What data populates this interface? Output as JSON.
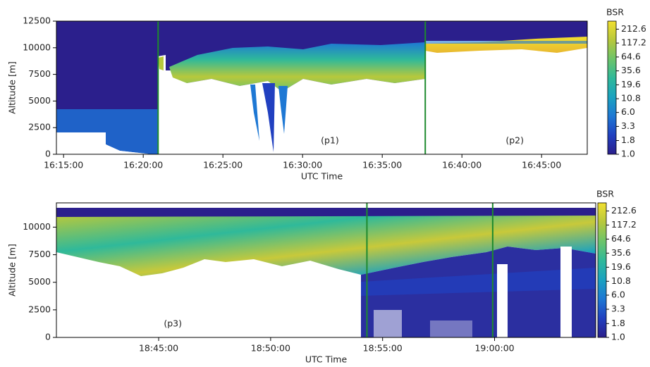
{
  "chart_data": [
    {
      "type": "heatmap",
      "x_label": "UTC Time",
      "y_label": "Altitude [m]",
      "xlim": [
        "16:14:33",
        "16:47:52"
      ],
      "xticks": [
        "16:15:00",
        "16:20:00",
        "16:25:00",
        "16:30:00",
        "16:35:00",
        "16:40:00",
        "16:45:00"
      ],
      "ylim": [
        0,
        12500
      ],
      "yticks": [
        0,
        2500,
        5000,
        7500,
        10000,
        12500
      ],
      "vlines": {
        "color": "#1e8a2e",
        "x": [
          "16:20:56",
          "16:37:42"
        ]
      },
      "annotations": [
        {
          "text": "(p1)",
          "x": "16:31:43",
          "y": 1257
        },
        {
          "text": "(p2)",
          "x": "16:43:19",
          "y": 1257
        }
      ],
      "colorbar": {
        "label": "BSR",
        "log": true,
        "clim": [
          1,
          300
        ],
        "colors": [
          "#2b1f8c",
          "#2140c0",
          "#1e78d4",
          "#1aa2c0",
          "#2fb99a",
          "#6cc46a",
          "#b7c83c",
          "#f2e030"
        ],
        "ticks": [
          {
            "value": 1,
            "label": "1.0"
          },
          1.8,
          3.3,
          {
            "value": 6,
            "label": "6.0"
          },
          10.8,
          19.6,
          35.6,
          64.6,
          117.2,
          212.6
        ]
      }
    },
    {
      "type": "heatmap",
      "x_label": "UTC Time",
      "y_label": "Altitude [m]",
      "xlim": [
        "18:40:26",
        "19:04:31"
      ],
      "xticks": [
        "18:45:00",
        "18:50:00",
        "18:55:00",
        "19:00:00"
      ],
      "ylim": [
        0,
        12200
      ],
      "yticks": [
        0,
        2500,
        5000,
        7500,
        10000
      ],
      "vlines": {
        "color": "#1e8a2e",
        "x": [
          "18:54:18",
          "18:59:55"
        ]
      },
      "annotations": [
        {
          "text": "(p3)",
          "x": "18:45:38",
          "y": 1210
        }
      ],
      "colorbar": {
        "label": "BSR",
        "log": true,
        "clim": [
          1,
          300
        ],
        "colors": [
          "#2b1f8c",
          "#2140c0",
          "#1e78d4",
          "#1aa2c0",
          "#2fb99a",
          "#6cc46a",
          "#b7c83c",
          "#f2e030"
        ],
        "ticks": [
          {
            "value": 1,
            "label": "1.0"
          },
          1.8,
          3.3,
          {
            "value": 6,
            "label": "6.0"
          },
          10.8,
          19.6,
          35.6,
          64.6,
          117.2,
          212.6
        ]
      }
    }
  ]
}
